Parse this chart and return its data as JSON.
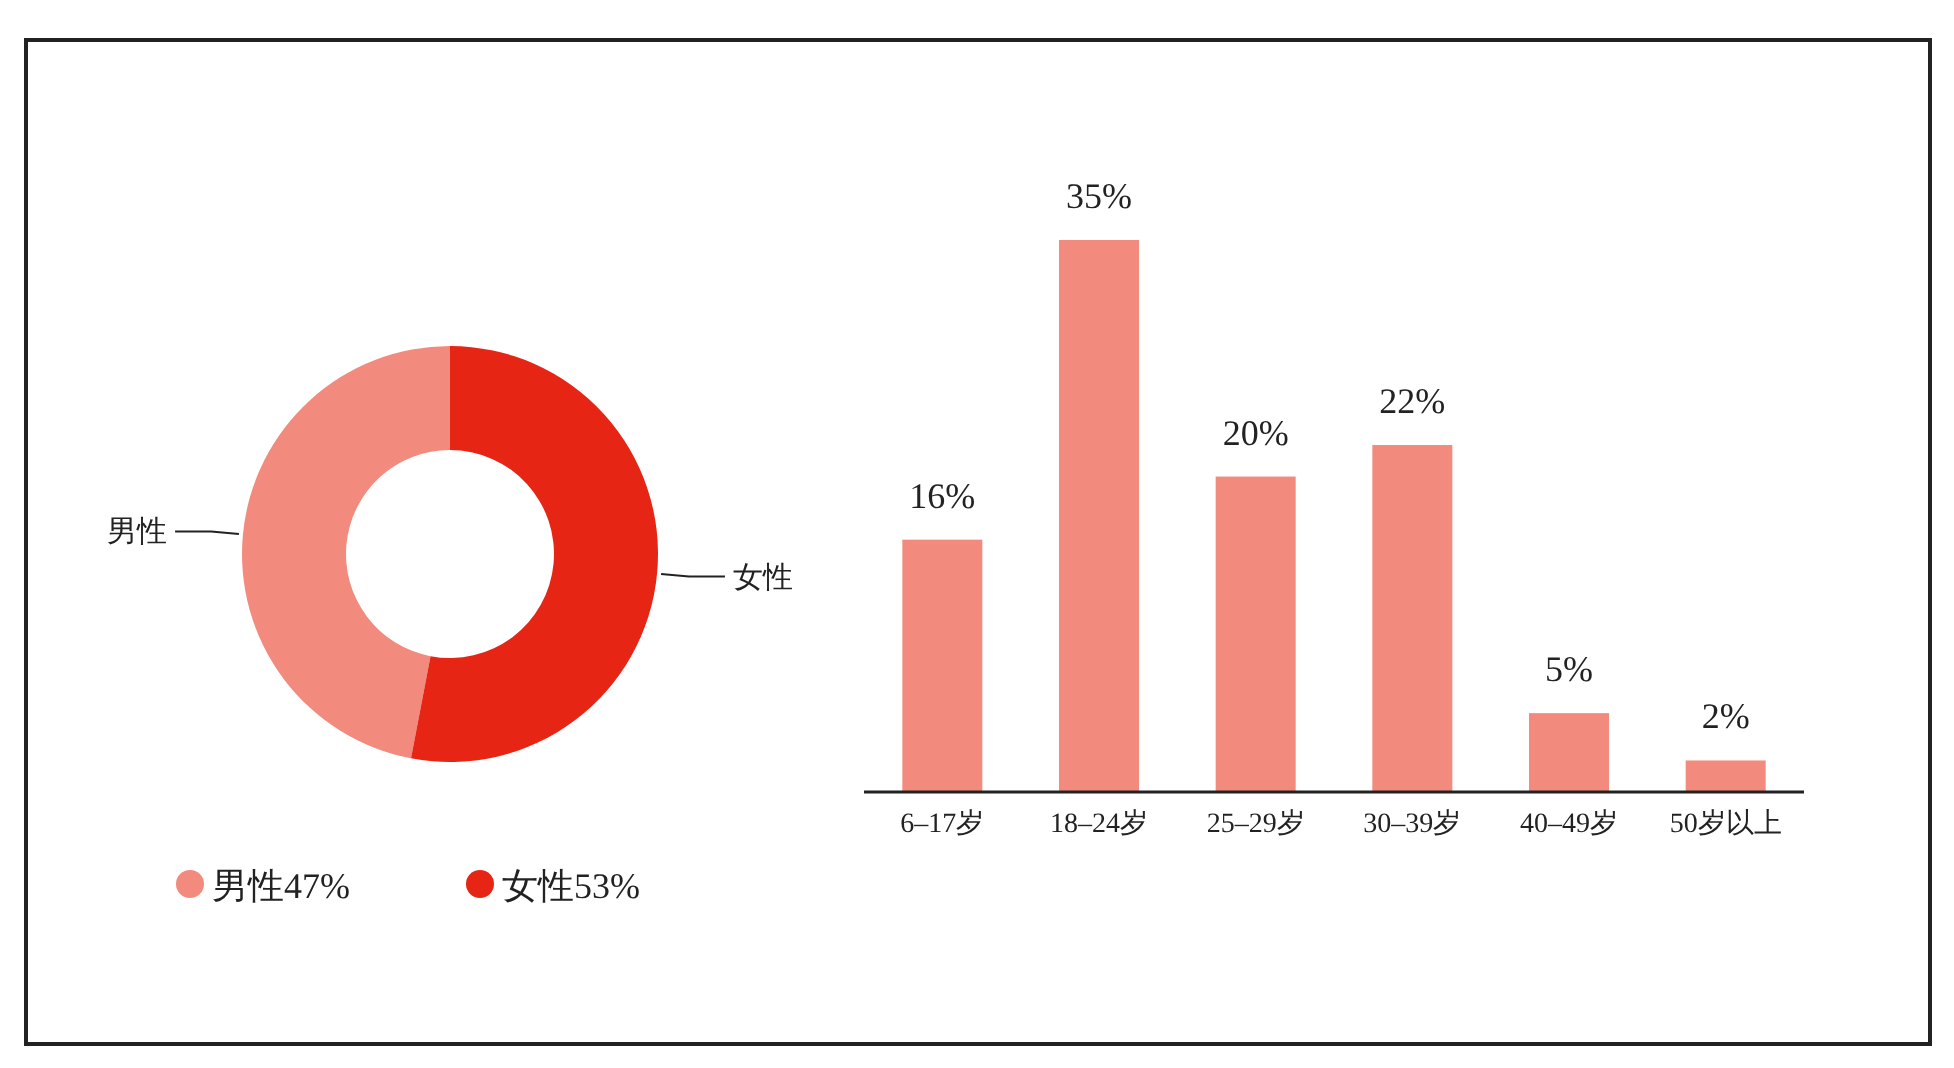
{
  "chart_data": [
    {
      "type": "donut",
      "categories": [
        "男性",
        "女性"
      ],
      "values": [
        47,
        53
      ],
      "colors": [
        "#f28b7d",
        "#e62514"
      ],
      "value_labels": [
        "47%",
        "53%"
      ],
      "legend": "bottom"
    },
    {
      "type": "bar",
      "categories": [
        "6–17岁",
        "18–24岁",
        "25–29岁",
        "30–39岁",
        "40–49岁",
        "50岁以上"
      ],
      "values": [
        16,
        35,
        20,
        22,
        5,
        2
      ],
      "color": "#f28b7d",
      "value_labels": [
        "16%",
        "35%",
        "20%",
        "22%",
        "5%",
        "2%"
      ]
    }
  ]
}
